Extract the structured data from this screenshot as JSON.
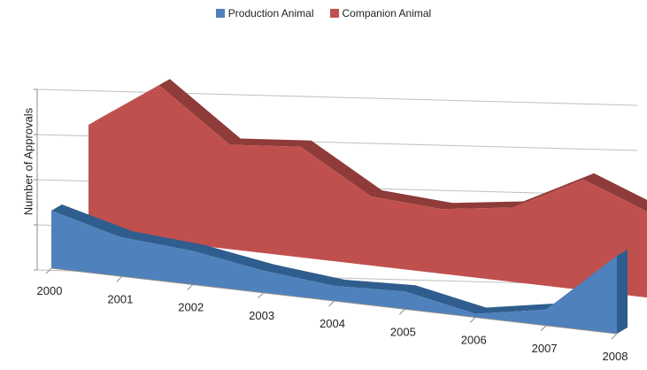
{
  "chart_data": {
    "type": "area",
    "categories": [
      "2000",
      "2001",
      "2002",
      "2003",
      "2004",
      "2005",
      "2006",
      "2007",
      "2008"
    ],
    "series": [
      {
        "name": "Production Animal",
        "values": [
          6.5,
          4.4,
          3.8,
          2.5,
          1.7,
          2.0,
          0.4,
          1.8,
          8.8
        ],
        "color": "#4f81bd"
      },
      {
        "name": "Companion Animal",
        "values": [
          12.2,
          17.6,
          11.8,
          12.5,
          7.8,
          7.3,
          8.4,
          12.5,
          9.4
        ],
        "color": "#c0504d"
      }
    ],
    "ylabel": "Number of Approvals",
    "xlabel": "",
    "ylim": [
      0,
      20
    ],
    "yticks": [
      0,
      5,
      10,
      15,
      20
    ],
    "grid": true,
    "legend": "top",
    "style": "3d"
  }
}
